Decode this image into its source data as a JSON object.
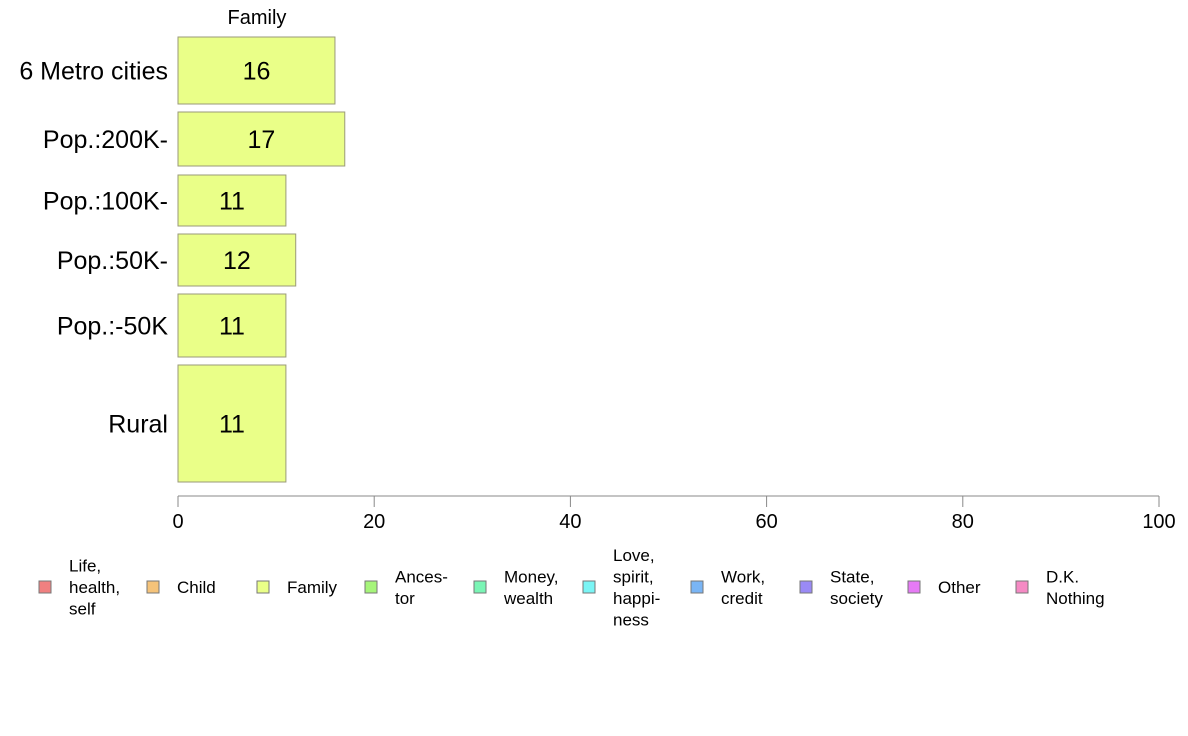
{
  "chart_data": {
    "type": "bar",
    "orientation": "horizontal",
    "series_header": "Family",
    "categories": [
      "6 Metro cities",
      "Pop.:200K-",
      "Pop.:100K-",
      "Pop.:50K-",
      "Pop.:-50K",
      "Rural"
    ],
    "series": [
      {
        "name": "Family",
        "values": [
          16,
          17,
          11,
          12,
          11,
          11
        ],
        "color": "#eaff88"
      }
    ],
    "data_labels": [
      "16",
      "17",
      "11",
      "12",
      "11",
      "11"
    ],
    "xlim": [
      0,
      100
    ],
    "x_ticks": [
      0,
      20,
      40,
      60,
      80,
      100
    ],
    "x_tick_labels": [
      "0",
      "20",
      "40",
      "60",
      "80",
      "100"
    ],
    "grid": false,
    "legend_position": "bottom",
    "legend": [
      {
        "lines": [
          "Life,",
          "health,",
          "self"
        ],
        "color": "#f08080"
      },
      {
        "lines": [
          "Child"
        ],
        "color": "#f5c37a"
      },
      {
        "lines": [
          "Family"
        ],
        "color": "#eaff88"
      },
      {
        "lines": [
          "Ances-",
          "tor"
        ],
        "color": "#a6f57a"
      },
      {
        "lines": [
          "Money,",
          "wealth"
        ],
        "color": "#7af5b5"
      },
      {
        "lines": [
          "Love,",
          "spirit,",
          "happi-",
          "ness"
        ],
        "color": "#7af5f5"
      },
      {
        "lines": [
          "Work,",
          "credit"
        ],
        "color": "#7ab5f5"
      },
      {
        "lines": [
          "State,",
          "society"
        ],
        "color": "#9a8af5"
      },
      {
        "lines": [
          "Other"
        ],
        "color": "#e67af5"
      },
      {
        "lines": [
          "D.K.",
          "Nothing"
        ],
        "color": "#f58ac4"
      }
    ]
  }
}
